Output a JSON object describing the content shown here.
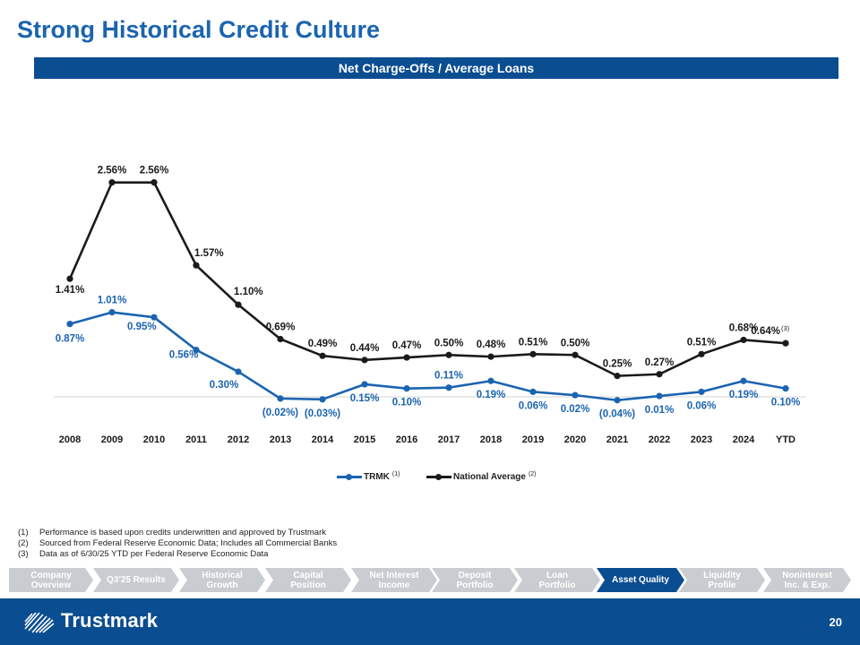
{
  "page": {
    "title": "Strong Historical Credit Culture",
    "subtitle": "Net Charge-Offs / Average Loans",
    "page_number": "20"
  },
  "colors": {
    "title": "#1b64b0",
    "bar": "#0b4d91",
    "trmk": "#1b64b0",
    "national": "#1a1a1a",
    "nav_inactive": "#c9ccd0",
    "nav_active": "#0b4d91"
  },
  "chart_data": {
    "type": "line",
    "title": "Net Charge-Offs / Average Loans",
    "categories": [
      "2008",
      "2009",
      "2010",
      "2011",
      "2012",
      "2013",
      "2014",
      "2015",
      "2016",
      "2017",
      "2018",
      "2019",
      "2020",
      "2021",
      "2022",
      "2023",
      "2024",
      "YTD"
    ],
    "series": [
      {
        "name": "TRMK",
        "note": "(1)",
        "values": [
          0.87,
          1.01,
          0.95,
          0.56,
          0.3,
          -0.02,
          -0.03,
          0.15,
          0.1,
          0.11,
          0.19,
          0.06,
          0.02,
          -0.04,
          0.01,
          0.06,
          0.19,
          0.1
        ],
        "labels": [
          "0.87%",
          "1.01%",
          "0.95%",
          "0.56%",
          "0.30%",
          "(0.02%)",
          "(0.03%)",
          "0.15%",
          "0.10%",
          "0.11%",
          "0.19%",
          "0.06%",
          "0.02%",
          "(0.04%)",
          "0.01%",
          "0.06%",
          "0.19%",
          "0.10%"
        ],
        "label_pos": [
          "below",
          "above",
          "right",
          "below",
          "below",
          "below",
          "below",
          "below",
          "below",
          "above",
          "below",
          "below",
          "below",
          "below",
          "below",
          "below",
          "below",
          "below"
        ]
      },
      {
        "name": "National Average",
        "note": "(2)",
        "values": [
          1.41,
          2.56,
          2.56,
          1.57,
          1.1,
          0.69,
          0.49,
          0.44,
          0.47,
          0.5,
          0.48,
          0.51,
          0.5,
          0.25,
          0.27,
          0.51,
          0.68,
          0.64
        ],
        "labels": [
          "1.41%",
          "2.56%",
          "2.56%",
          "1.57%",
          "1.10%",
          "0.69%",
          "0.49%",
          "0.44%",
          "0.47%",
          "0.50%",
          "0.48%",
          "0.51%",
          "0.50%",
          "0.25%",
          "0.27%",
          "0.51%",
          "0.68%",
          "0.64%"
        ],
        "label_pos": [
          "below",
          "above",
          "above",
          "right",
          "right",
          "above",
          "above",
          "above",
          "above",
          "above",
          "above",
          "above",
          "above",
          "above",
          "above",
          "above",
          "above",
          "left"
        ],
        "last_label_note": "(3)"
      }
    ],
    "ylim": [
      -0.05,
      2.6
    ],
    "grid": false,
    "legend_position": "bottom"
  },
  "footnotes": [
    {
      "num": "(1)",
      "text": "Performance is based upon credits underwritten and approved by Trustmark"
    },
    {
      "num": "(2)",
      "text": "Sourced from Federal Reserve Economic Data; Includes all Commercial Banks"
    },
    {
      "num": "(3)",
      "text": "Data as of 6/30/25 YTD per Federal Reserve Economic Data"
    }
  ],
  "nav": [
    {
      "line1": "Company",
      "line2": "Overview",
      "active": false
    },
    {
      "line1": "Q3'25 Results",
      "line2": "",
      "active": false
    },
    {
      "line1": "Historical",
      "line2": "Growth",
      "active": false
    },
    {
      "line1": "Capital",
      "line2": "Position",
      "active": false
    },
    {
      "line1": "Net Interest",
      "line2": "Income",
      "active": false
    },
    {
      "line1": "Deposit",
      "line2": "Portfolio",
      "active": false
    },
    {
      "line1": "Loan",
      "line2": "Portfolio",
      "active": false
    },
    {
      "line1": "Asset Quality",
      "line2": "",
      "active": true
    },
    {
      "line1": "Liquidity",
      "line2": "Profile",
      "active": false
    },
    {
      "line1": "Noninterest",
      "line2": "Inc. & Exp.",
      "active": false
    }
  ],
  "logo": {
    "text": "Trustmark"
  }
}
